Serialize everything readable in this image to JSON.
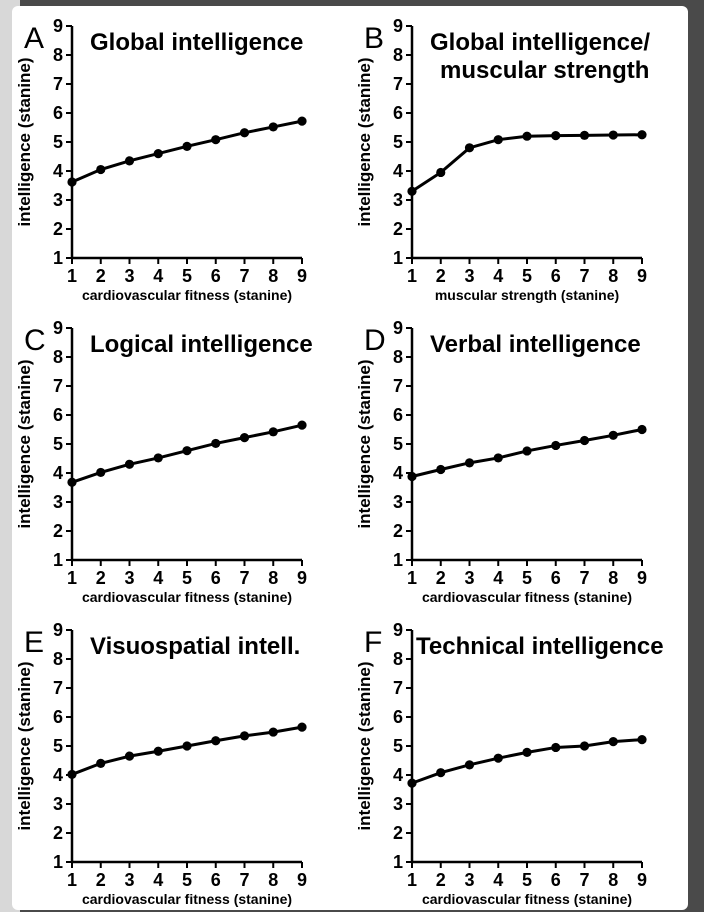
{
  "chart_data": [
    {
      "type": "line",
      "panel": "A",
      "title": "Global intelligence",
      "xlabel": "cardiovascular fitness (stanine)",
      "ylabel": "intelligence (stanine)",
      "x": [
        1,
        2,
        3,
        4,
        5,
        6,
        7,
        8,
        9
      ],
      "values": [
        3.62,
        4.05,
        4.35,
        4.6,
        4.85,
        5.08,
        5.32,
        5.52,
        5.72
      ],
      "xlim": [
        1,
        9
      ],
      "ylim": [
        1,
        9
      ],
      "xticks": [
        "1",
        "2",
        "3",
        "4",
        "5",
        "6",
        "7",
        "8",
        "9"
      ],
      "yticks": [
        "1",
        "2",
        "3",
        "4",
        "5",
        "6",
        "7",
        "8",
        "9"
      ],
      "grid": false
    },
    {
      "type": "line",
      "panel": "B",
      "title": "Global intelligence/",
      "title2": "muscular strength",
      "xlabel": "muscular strength (stanine)",
      "ylabel": "intelligence (stanine)",
      "x": [
        1,
        2,
        3,
        4,
        5,
        6,
        7,
        8,
        9
      ],
      "values": [
        3.3,
        3.95,
        4.8,
        5.08,
        5.2,
        5.22,
        5.23,
        5.24,
        5.25
      ],
      "xlim": [
        1,
        9
      ],
      "ylim": [
        1,
        9
      ],
      "xticks": [
        "1",
        "2",
        "3",
        "4",
        "5",
        "6",
        "7",
        "8",
        "9"
      ],
      "yticks": [
        "1",
        "2",
        "3",
        "4",
        "5",
        "6",
        "7",
        "8",
        "9"
      ],
      "grid": false
    },
    {
      "type": "line",
      "panel": "C",
      "title": "Logical intelligence",
      "xlabel": "cardiovascular fitness (stanine)",
      "ylabel": "intelligence (stanine)",
      "x": [
        1,
        2,
        3,
        4,
        5,
        6,
        7,
        8,
        9
      ],
      "values": [
        3.68,
        4.02,
        4.3,
        4.52,
        4.77,
        5.02,
        5.22,
        5.42,
        5.65
      ],
      "xlim": [
        1,
        9
      ],
      "ylim": [
        1,
        9
      ],
      "xticks": [
        "1",
        "2",
        "3",
        "4",
        "5",
        "6",
        "7",
        "8",
        "9"
      ],
      "yticks": [
        "1",
        "2",
        "3",
        "4",
        "5",
        "6",
        "7",
        "8",
        "9"
      ],
      "grid": false
    },
    {
      "type": "line",
      "panel": "D",
      "title": "Verbal intelligence",
      "xlabel": "cardiovascular fitness (stanine)",
      "ylabel": "intelligence (stanine)",
      "x": [
        1,
        2,
        3,
        4,
        5,
        6,
        7,
        8,
        9
      ],
      "values": [
        3.88,
        4.12,
        4.35,
        4.52,
        4.76,
        4.95,
        5.12,
        5.3,
        5.5
      ],
      "xlim": [
        1,
        9
      ],
      "ylim": [
        1,
        9
      ],
      "xticks": [
        "1",
        "2",
        "3",
        "4",
        "5",
        "6",
        "7",
        "8",
        "9"
      ],
      "yticks": [
        "1",
        "2",
        "3",
        "4",
        "5",
        "6",
        "7",
        "8",
        "9"
      ],
      "grid": false
    },
    {
      "type": "line",
      "panel": "E",
      "title": "Visuospatial intell.",
      "xlabel": "cardiovascular fitness (stanine)",
      "ylabel": "intelligence (stanine)",
      "x": [
        1,
        2,
        3,
        4,
        5,
        6,
        7,
        8,
        9
      ],
      "values": [
        4.02,
        4.4,
        4.65,
        4.82,
        5.0,
        5.18,
        5.35,
        5.48,
        5.65
      ],
      "xlim": [
        1,
        9
      ],
      "ylim": [
        1,
        9
      ],
      "xticks": [
        "1",
        "2",
        "3",
        "4",
        "5",
        "6",
        "7",
        "8",
        "9"
      ],
      "yticks": [
        "1",
        "2",
        "3",
        "4",
        "5",
        "6",
        "7",
        "8",
        "9"
      ],
      "grid": false
    },
    {
      "type": "line",
      "panel": "F",
      "title": "Technical intelligence",
      "xlabel": "cardiovascular fitness (stanine)",
      "ylabel": "intelligence (stanine)",
      "x": [
        1,
        2,
        3,
        4,
        5,
        6,
        7,
        8,
        9
      ],
      "values": [
        3.72,
        4.08,
        4.35,
        4.58,
        4.78,
        4.95,
        5.0,
        5.15,
        5.22
      ],
      "xlim": [
        1,
        9
      ],
      "ylim": [
        1,
        9
      ],
      "xticks": [
        "1",
        "2",
        "3",
        "4",
        "5",
        "6",
        "7",
        "8",
        "9"
      ],
      "yticks": [
        "1",
        "2",
        "3",
        "4",
        "5",
        "6",
        "7",
        "8",
        "9"
      ],
      "grid": false
    }
  ]
}
